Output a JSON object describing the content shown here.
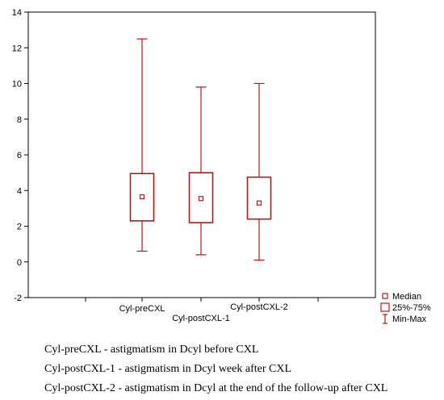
{
  "chart_data": {
    "type": "box",
    "categories": [
      "Cyl-preCXL",
      "Cyl-postCXL-1",
      "Cyl-postCXL-2"
    ],
    "boxes": [
      {
        "min": 0.6,
        "q1": 2.3,
        "median": 3.65,
        "q3": 4.95,
        "max": 12.5
      },
      {
        "min": 0.4,
        "q1": 2.2,
        "median": 3.55,
        "q3": 5.0,
        "max": 9.8
      },
      {
        "min": 0.1,
        "q1": 2.4,
        "median": 3.3,
        "q3": 4.75,
        "max": 10.0
      }
    ],
    "ylim": [
      -2,
      14
    ],
    "yticks": [
      "-2",
      "0",
      "2",
      "4",
      "6",
      "8",
      "10",
      "12",
      "14"
    ],
    "grid": false,
    "legend": {
      "position": "bottom-right",
      "items": [
        "Median",
        "25%-75%",
        "Min-Max"
      ]
    },
    "color": "#b11a1a"
  },
  "captions": [
    "Cyl-preCXL - astigmatism in Dcyl before CXL",
    "Cyl-postCXL-1 - astigmatism in Dcyl week after CXL",
    "Cyl-postCXL-2 - astigmatism in Dcyl at the end of the follow-up after CXL"
  ]
}
